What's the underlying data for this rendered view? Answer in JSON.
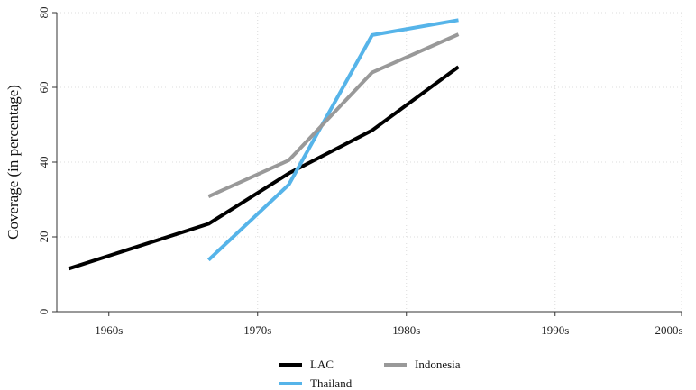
{
  "chart_data": {
    "type": "line",
    "title": "",
    "xlabel": "",
    "ylabel": "Coverage (in percentage)",
    "categories": [
      "1960s",
      "1970s",
      "1980s",
      "1990s",
      "2000s"
    ],
    "xlim": [
      1960,
      2002
    ],
    "ylim": [
      0,
      80
    ],
    "yticks": [
      0,
      20,
      40,
      60,
      80
    ],
    "grid": true,
    "legend_position": "bottom",
    "series": [
      {
        "name": "LAC",
        "color": "#000000",
        "x": [
          1960.8,
          1970.2,
          1975.6,
          1981.2,
          1987.0
        ],
        "y": [
          11.5,
          23.5,
          37.0,
          48.5,
          65.5
        ]
      },
      {
        "name": "Thailand",
        "color": "#56b4e9",
        "x": [
          1970.2,
          1975.6,
          1981.2,
          1987.0
        ],
        "y": [
          13.8,
          34.0,
          74.0,
          78.0
        ]
      },
      {
        "name": "Indonesia",
        "color": "#999999",
        "x": [
          1970.2,
          1975.6,
          1981.2,
          1987.0
        ],
        "y": [
          30.8,
          40.5,
          64.0,
          74.2
        ]
      }
    ]
  }
}
